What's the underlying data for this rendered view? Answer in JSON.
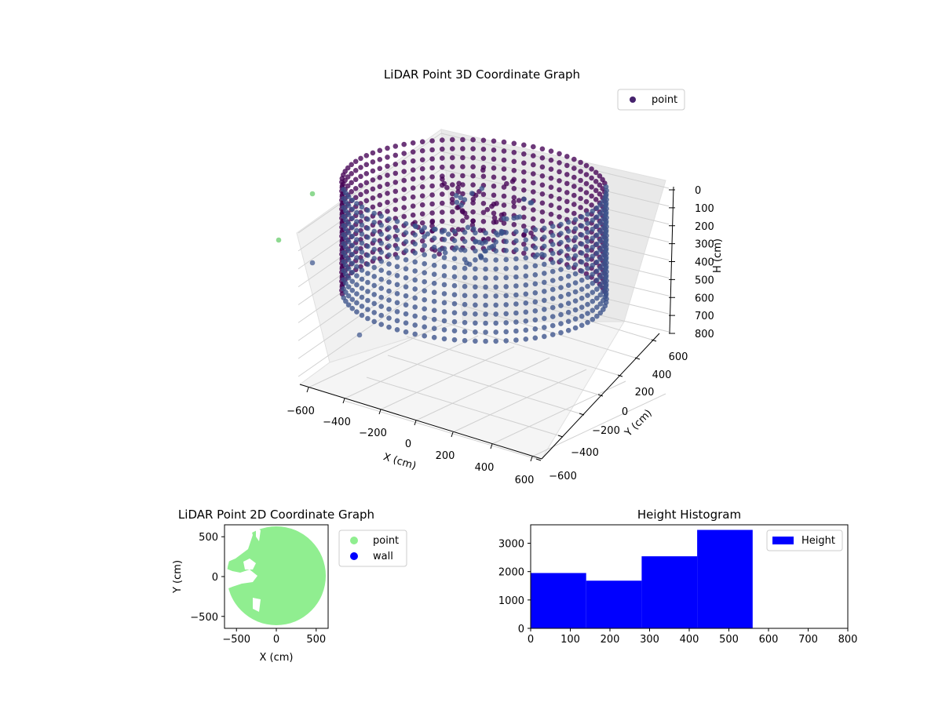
{
  "chart_data": [
    {
      "type": "scatter",
      "projection": "3d",
      "title": "LiDAR Point 3D Coordinate Graph",
      "xlabel": "X (cm)",
      "ylabel": "Y (cm)",
      "zlabel": "H (cm)",
      "xlim": [
        -650,
        650
      ],
      "ylim": [
        -650,
        650
      ],
      "zlim": [
        0,
        800
      ],
      "z_inverted": true,
      "xticks": [
        "−600",
        "−400",
        "−200",
        "0",
        "200",
        "400",
        "600"
      ],
      "yticks": [
        "−600",
        "−400",
        "−200",
        "0",
        "200",
        "400",
        "600"
      ],
      "zticks": [
        "0",
        "100",
        "200",
        "300",
        "400",
        "500",
        "600",
        "700",
        "800"
      ],
      "legend": {
        "placement": "top-right",
        "entries": [
          "point"
        ]
      },
      "colormap": [
        "#440154",
        "#3b528b",
        "#21918c",
        "#5ec962"
      ],
      "marker_color": "#46226d",
      "description_of_shape": {
        "wall_ring_radius": 560,
        "wall_height_range": [
          150,
          750
        ]
      }
    },
    {
      "type": "scatter",
      "title": "LiDAR Point 2D Coordinate Graph",
      "xlabel": "X (cm)",
      "ylabel": "Y (cm)",
      "xlim": [
        -650,
        650
      ],
      "ylim": [
        -650,
        650
      ],
      "xticks": [
        "−500",
        "0",
        "500"
      ],
      "yticks": [
        "−500",
        "0",
        "500"
      ],
      "series": [
        {
          "name": "point",
          "color": "#90ee90"
        },
        {
          "name": "wall",
          "color": "#0000ff"
        }
      ],
      "legend": {
        "placement": "outside-right"
      }
    },
    {
      "type": "bar",
      "title": "Height Histogram",
      "xlim": [
        0,
        800
      ],
      "ylim": [
        0,
        3650
      ],
      "xticks": [
        "0",
        "100",
        "200",
        "300",
        "400",
        "500",
        "600",
        "700",
        "800"
      ],
      "yticks": [
        "0",
        "1000",
        "2000",
        "3000"
      ],
      "bin_edges": [
        0,
        140,
        280,
        420,
        560
      ],
      "values": [
        1950,
        1680,
        2540,
        3470
      ],
      "series": [
        {
          "name": "Height",
          "color": "#0000ff"
        }
      ],
      "legend": {
        "placement": "top-right"
      }
    }
  ]
}
